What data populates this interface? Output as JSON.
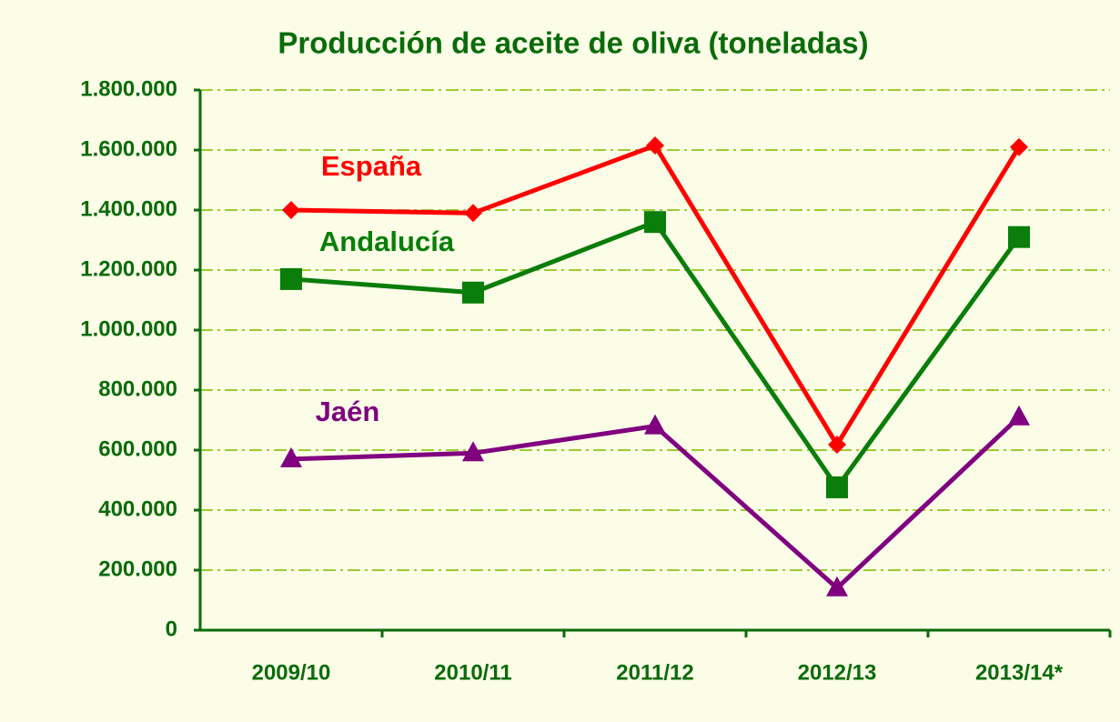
{
  "chart_data": {
    "type": "line",
    "title": "Producción de aceite de oliva (toneladas)",
    "categories": [
      "2009/10",
      "2010/11",
      "2011/12",
      "2012/13",
      "2013/14*"
    ],
    "series": [
      {
        "name": "España",
        "color": "#ff0000",
        "marker": "diamond",
        "values": [
          1400000,
          1390000,
          1615000,
          618000,
          1610000
        ]
      },
      {
        "name": "Andalucía",
        "color": "#0a7d0a",
        "marker": "square",
        "values": [
          1170000,
          1125000,
          1360000,
          476000,
          1310000
        ]
      },
      {
        "name": "Jaén",
        "color": "#800080",
        "marker": "triangle",
        "values": [
          570000,
          590000,
          680000,
          140000,
          710000
        ]
      }
    ],
    "ylim": [
      0,
      1800000
    ],
    "yticks": [
      0,
      {
        "value": 200000,
        "label": "200.000"
      },
      {
        "value": 400000,
        "label": "400.000"
      },
      {
        "value": 600000,
        "label": "600.000"
      },
      {
        "value": 800000,
        "label": "800.000"
      },
      {
        "value": 1000000,
        "label": "1.000.000"
      },
      {
        "value": 1200000,
        "label": "1.200.000"
      },
      {
        "value": 1400000,
        "label": "1.400.000"
      },
      {
        "value": 1600000,
        "label": "1.600.000"
      },
      {
        "value": 1800000,
        "label": "1.800.000"
      }
    ],
    "grid": true
  }
}
